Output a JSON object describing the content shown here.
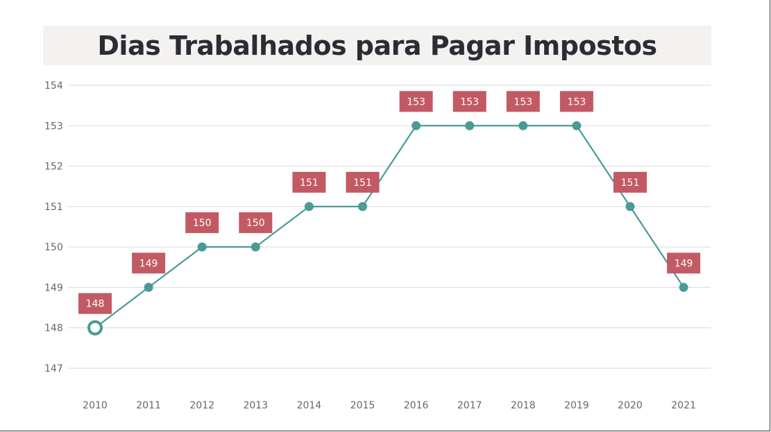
{
  "chart_data": {
    "type": "line",
    "title": "Dias Trabalhados para Pagar Impostos",
    "xlabel": "",
    "ylabel": "",
    "categories": [
      "2010",
      "2011",
      "2012",
      "2013",
      "2014",
      "2015",
      "2016",
      "2017",
      "2018",
      "2019",
      "2020",
      "2021"
    ],
    "series": [
      {
        "values": [
          148,
          149,
          150,
          150,
          151,
          151,
          153,
          153,
          153,
          153,
          151,
          149
        ]
      }
    ],
    "ylim": [
      147,
      154
    ],
    "yticks": [
      147,
      148,
      149,
      150,
      151,
      152,
      153,
      154
    ],
    "grid": true,
    "legend": "none",
    "data_labels": true,
    "colors": {
      "line": "#4a9a96",
      "label_bg": "#c25a63",
      "label_text": "#ffffff",
      "grid": "#d9d9d9",
      "title_bg": "#f3f2f1",
      "title_text": "#2c2c34"
    }
  }
}
